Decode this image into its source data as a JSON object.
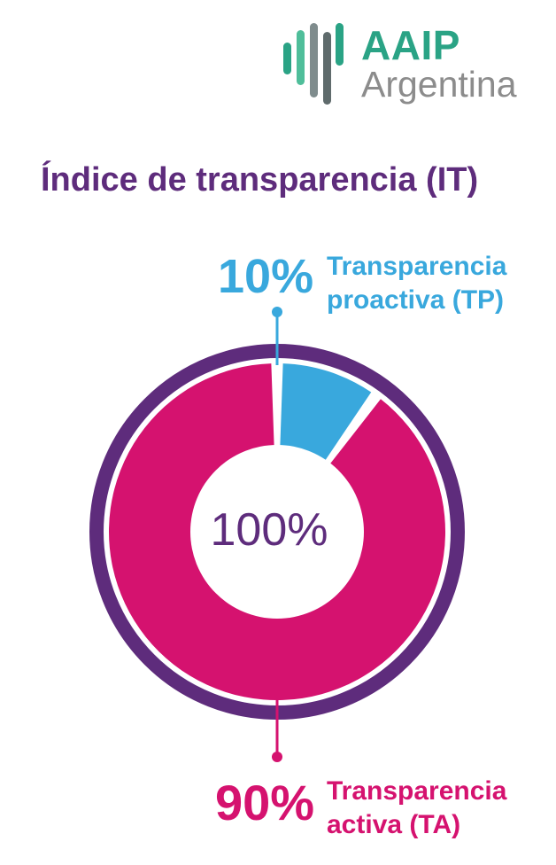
{
  "logo": {
    "line1": "AAIP",
    "line2": "Argentina"
  },
  "title": "Índice de transparencia (IT)",
  "colors": {
    "purple": "#5e2c7c",
    "blue": "#39a8dd",
    "magenta": "#d5126f",
    "green": "#2aa385",
    "gray": "#8c8c8c"
  },
  "chart_data": {
    "type": "pie",
    "title": "Índice de transparencia (IT)",
    "center_label": "100%",
    "total": 100,
    "series": [
      {
        "name": "Transparencia proactiva (TP)",
        "value": 10,
        "value_label": "10%",
        "label_line1": "Transparencia",
        "label_line2": "proactiva (TP)",
        "color": "#39a8dd"
      },
      {
        "name": "Transparencia activa (TA)",
        "value": 90,
        "value_label": "90%",
        "label_line1": "Transparencia",
        "label_line2": "activa (TA)",
        "color": "#d5126f"
      }
    ]
  }
}
